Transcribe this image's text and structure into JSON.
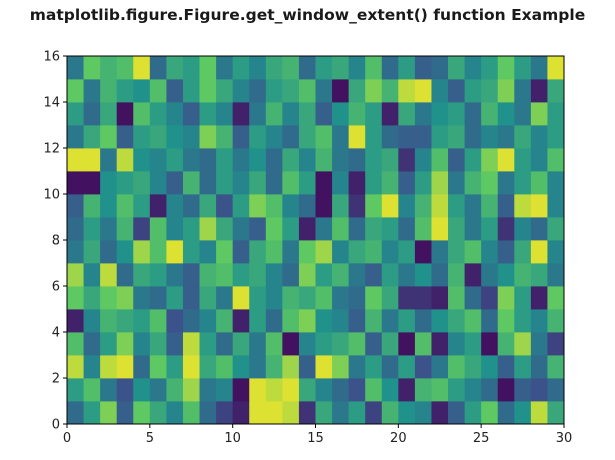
{
  "chart_data": {
    "type": "heatmap",
    "title": "matplotlib.figure.Figure.get_window_extent() function Example",
    "xlabel": "",
    "ylabel": "",
    "xlim": [
      0,
      30
    ],
    "ylim": [
      0,
      16
    ],
    "x_ticks": [
      "0",
      "5",
      "10",
      "15",
      "20",
      "25",
      "30"
    ],
    "y_ticks": [
      "0",
      "2",
      "4",
      "6",
      "8",
      "10",
      "12",
      "14",
      "16"
    ],
    "n_cols": 30,
    "n_rows": 16,
    "colormap": [
      "#440154",
      "#3b528b",
      "#21918c",
      "#5ec962",
      "#fde725"
    ],
    "values": [
      [
        0.35,
        0.55,
        0.8,
        0.3,
        0.75,
        0.6,
        0.45,
        0.7,
        0.35,
        0.2,
        0.1,
        0.95,
        0.95,
        0.9,
        0.15,
        0.6,
        0.4,
        0.55,
        0.2,
        0.65,
        0.5,
        0.45,
        0.1,
        0.3,
        0.55,
        0.75,
        0.35,
        0.5,
        0.9,
        0.6
      ],
      [
        0.55,
        0.7,
        0.4,
        0.25,
        0.5,
        0.4,
        0.65,
        0.85,
        0.4,
        0.45,
        0.05,
        0.95,
        0.9,
        0.95,
        0.6,
        0.45,
        0.35,
        0.25,
        0.7,
        0.5,
        0.1,
        0.65,
        0.7,
        0.55,
        0.45,
        0.35,
        0.05,
        0.3,
        0.25,
        0.35
      ],
      [
        0.9,
        0.45,
        0.9,
        0.95,
        0.35,
        0.75,
        0.55,
        0.95,
        0.6,
        0.7,
        0.5,
        0.4,
        0.65,
        0.85,
        0.3,
        0.95,
        0.8,
        0.4,
        0.55,
        0.35,
        0.55,
        0.25,
        0.4,
        0.7,
        0.6,
        0.5,
        0.3,
        0.55,
        0.35,
        0.65
      ],
      [
        0.7,
        0.35,
        0.55,
        0.8,
        0.45,
        0.6,
        0.3,
        0.9,
        0.55,
        0.35,
        0.6,
        0.4,
        0.7,
        0.05,
        0.45,
        0.55,
        0.6,
        0.7,
        0.3,
        0.6,
        0.05,
        0.7,
        0.1,
        0.45,
        0.55,
        0.05,
        0.65,
        0.85,
        0.4,
        0.2
      ],
      [
        0.1,
        0.45,
        0.65,
        0.6,
        0.55,
        0.7,
        0.25,
        0.35,
        0.45,
        0.65,
        0.1,
        0.55,
        0.35,
        0.7,
        0.8,
        0.5,
        0.45,
        0.3,
        0.65,
        0.4,
        0.55,
        0.35,
        0.5,
        0.6,
        0.7,
        0.35,
        0.75,
        0.55,
        0.45,
        0.65
      ],
      [
        0.75,
        0.6,
        0.75,
        0.8,
        0.4,
        0.35,
        0.55,
        0.3,
        0.6,
        0.4,
        0.95,
        0.55,
        0.45,
        0.65,
        0.6,
        0.7,
        0.4,
        0.35,
        0.75,
        0.6,
        0.15,
        0.15,
        0.1,
        0.7,
        0.35,
        0.2,
        0.8,
        0.55,
        0.1,
        0.75
      ],
      [
        0.85,
        0.45,
        0.9,
        0.35,
        0.6,
        0.55,
        0.4,
        0.3,
        0.65,
        0.7,
        0.55,
        0.6,
        0.45,
        0.35,
        0.8,
        0.55,
        0.65,
        0.4,
        0.3,
        0.55,
        0.4,
        0.5,
        0.35,
        0.65,
        0.1,
        0.4,
        0.5,
        0.65,
        0.6,
        0.4
      ],
      [
        0.4,
        0.6,
        0.35,
        0.5,
        0.85,
        0.7,
        0.95,
        0.55,
        0.45,
        0.75,
        0.3,
        0.6,
        0.7,
        0.4,
        0.75,
        0.85,
        0.45,
        0.6,
        0.65,
        0.45,
        0.55,
        0.05,
        0.4,
        0.6,
        0.7,
        0.45,
        0.3,
        0.6,
        0.95,
        0.45
      ],
      [
        0.35,
        0.55,
        0.4,
        0.65,
        0.2,
        0.7,
        0.45,
        0.55,
        0.85,
        0.6,
        0.4,
        0.3,
        0.75,
        0.55,
        0.1,
        0.4,
        0.7,
        0.35,
        0.6,
        0.55,
        0.35,
        0.7,
        0.95,
        0.6,
        0.4,
        0.55,
        0.15,
        0.45,
        0.35,
        0.6
      ],
      [
        0.3,
        0.65,
        0.5,
        0.7,
        0.55,
        0.1,
        0.45,
        0.35,
        0.6,
        0.25,
        0.55,
        0.8,
        0.7,
        0.45,
        0.35,
        0.05,
        0.6,
        0.15,
        0.75,
        0.95,
        0.45,
        0.65,
        0.9,
        0.55,
        0.4,
        0.65,
        0.3,
        0.9,
        0.95,
        0.45
      ],
      [
        0.05,
        0.05,
        0.5,
        0.55,
        0.6,
        0.45,
        0.3,
        0.65,
        0.35,
        0.55,
        0.45,
        0.6,
        0.35,
        0.7,
        0.55,
        0.05,
        0.45,
        0.1,
        0.55,
        0.65,
        0.3,
        0.55,
        0.85,
        0.4,
        0.65,
        0.75,
        0.4,
        0.55,
        0.7,
        0.45
      ],
      [
        0.95,
        0.95,
        0.4,
        0.9,
        0.5,
        0.45,
        0.55,
        0.4,
        0.35,
        0.55,
        0.4,
        0.5,
        0.35,
        0.6,
        0.45,
        0.65,
        0.4,
        0.35,
        0.55,
        0.6,
        0.15,
        0.45,
        0.7,
        0.3,
        0.55,
        0.8,
        0.95,
        0.55,
        0.45,
        0.7
      ],
      [
        0.4,
        0.6,
        0.75,
        0.3,
        0.55,
        0.6,
        0.5,
        0.45,
        0.8,
        0.65,
        0.3,
        0.55,
        0.45,
        0.35,
        0.6,
        0.7,
        0.4,
        0.95,
        0.55,
        0.35,
        0.3,
        0.3,
        0.55,
        0.6,
        0.35,
        0.45,
        0.4,
        0.6,
        0.45,
        0.55
      ],
      [
        0.55,
        0.35,
        0.6,
        0.05,
        0.7,
        0.55,
        0.45,
        0.3,
        0.55,
        0.45,
        0.1,
        0.4,
        0.65,
        0.45,
        0.6,
        0.3,
        0.5,
        0.65,
        0.55,
        0.1,
        0.6,
        0.4,
        0.5,
        0.55,
        0.35,
        0.65,
        0.5,
        0.4,
        0.8,
        0.55
      ],
      [
        0.75,
        0.4,
        0.65,
        0.55,
        0.5,
        0.7,
        0.3,
        0.55,
        0.75,
        0.6,
        0.45,
        0.35,
        0.55,
        0.6,
        0.7,
        0.4,
        0.05,
        0.6,
        0.8,
        0.65,
        0.9,
        0.95,
        0.45,
        0.3,
        0.55,
        0.6,
        0.8,
        0.4,
        0.1,
        0.6
      ],
      [
        0.4,
        0.75,
        0.65,
        0.7,
        0.95,
        0.35,
        0.6,
        0.55,
        0.75,
        0.4,
        0.55,
        0.45,
        0.6,
        0.65,
        0.35,
        0.55,
        0.6,
        0.45,
        0.7,
        0.35,
        0.55,
        0.3,
        0.35,
        0.6,
        0.45,
        0.55,
        0.75,
        0.55,
        0.4,
        0.95
      ]
    ]
  }
}
